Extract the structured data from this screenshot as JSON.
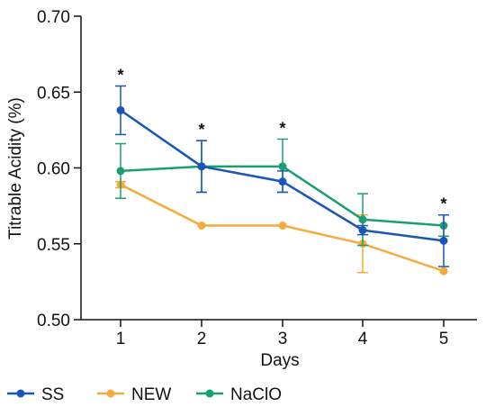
{
  "chart_data": {
    "type": "line",
    "title": "",
    "xlabel": "Days",
    "ylabel": "Titrable Acidity (%)",
    "x": [
      1,
      2,
      3,
      4,
      5
    ],
    "xticks": [
      "1",
      "2",
      "3",
      "4",
      "5"
    ],
    "yticks": [
      "0.50",
      "0.55",
      "0.60",
      "0.65",
      "0.70"
    ],
    "ylim": [
      0.5,
      0.7
    ],
    "grid": false,
    "legend_position": "bottom",
    "series": [
      {
        "name": "SS",
        "color": "#1a56b8",
        "values": [
          0.638,
          0.601,
          0.591,
          0.559,
          0.552
        ],
        "err_low": [
          0.622,
          0.584,
          0.584,
          0.556,
          0.535
        ],
        "err_high": [
          0.654,
          0.618,
          0.598,
          0.562,
          0.569
        ]
      },
      {
        "name": "NEW",
        "color": "#f5ab3c",
        "values": [
          0.589,
          0.562,
          0.562,
          0.55,
          0.532
        ],
        "err_low": [
          0.587,
          0.562,
          0.562,
          0.531,
          0.532
        ],
        "err_high": [
          0.591,
          0.562,
          0.562,
          0.569,
          0.532
        ]
      },
      {
        "name": "NaClO",
        "color": "#1a9e73",
        "values": [
          0.598,
          0.601,
          0.601,
          0.566,
          0.562
        ],
        "err_low": [
          0.58,
          0.584,
          0.584,
          0.549,
          0.555
        ],
        "err_high": [
          0.616,
          0.618,
          0.619,
          0.583,
          0.569
        ]
      }
    ],
    "annotations": [
      {
        "x": 1,
        "y": 0.654,
        "text": "*"
      },
      {
        "x": 2,
        "y": 0.618,
        "text": "*"
      },
      {
        "x": 3,
        "y": 0.619,
        "text": "*"
      },
      {
        "x": 5,
        "y": 0.569,
        "text": "*"
      }
    ]
  }
}
